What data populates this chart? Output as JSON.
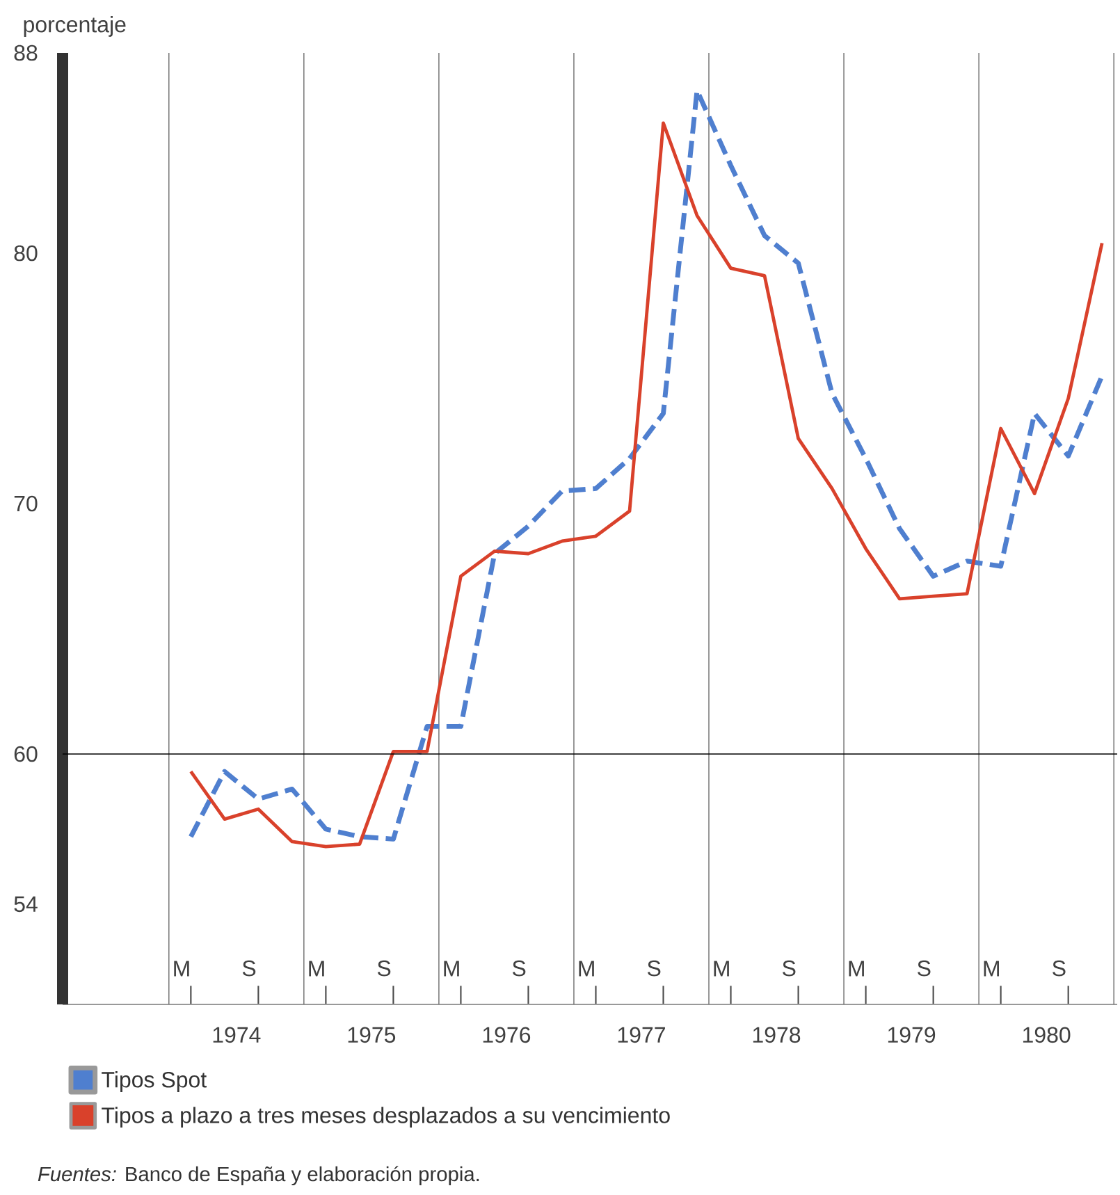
{
  "chart_data": {
    "type": "line",
    "ylabel": "porcentaje",
    "categories": [
      "M",
      null,
      "S",
      null,
      "M",
      null,
      "S",
      null,
      "M",
      null,
      "S",
      null,
      "M",
      null,
      "S",
      null,
      "M",
      null,
      "S",
      null,
      "M",
      null,
      "S",
      null,
      "M",
      null,
      "S",
      null
    ],
    "ylim": [
      50,
      88
    ],
    "yticks": [
      54,
      60,
      70,
      80,
      88
    ],
    "grid": "x",
    "legend": "bottom",
    "marker": "none",
    "ref_lines": [
      {
        "axis": "y",
        "value": 60,
        "color": "#000000"
      }
    ],
    "series": [
      {
        "name": "Tipos Spot",
        "color": "#4f7fcf",
        "line_style": "dashed",
        "values": [
          56.7,
          59.3,
          58.2,
          58.6,
          57.0,
          56.7,
          56.6,
          61.1,
          61.1,
          68.0,
          69.1,
          70.5,
          70.6,
          71.8,
          73.6,
          86.5,
          83.5,
          80.7,
          79.6,
          74.4,
          71.8,
          69.0,
          67.1,
          67.7,
          67.5,
          73.6,
          71.9,
          75.1
        ]
      },
      {
        "name": "Tipos a plazo a tres meses desplazados a su vencimiento",
        "color": "#d9412b",
        "line_style": "solid",
        "values": [
          59.3,
          57.4,
          57.8,
          56.5,
          56.3,
          56.4,
          60.1,
          60.1,
          67.1,
          68.1,
          68.0,
          68.5,
          68.7,
          69.7,
          85.2,
          81.5,
          79.4,
          79.1,
          72.6,
          70.6,
          68.2,
          66.2,
          66.3,
          66.4,
          73.0,
          70.4,
          74.2,
          80.4
        ]
      }
    ],
    "annotations": [
      "1974",
      "1975",
      "1976",
      "1977",
      "1978",
      "1979",
      "1980",
      "*Fuentes:* Banco de España y elaboración propia."
    ]
  }
}
